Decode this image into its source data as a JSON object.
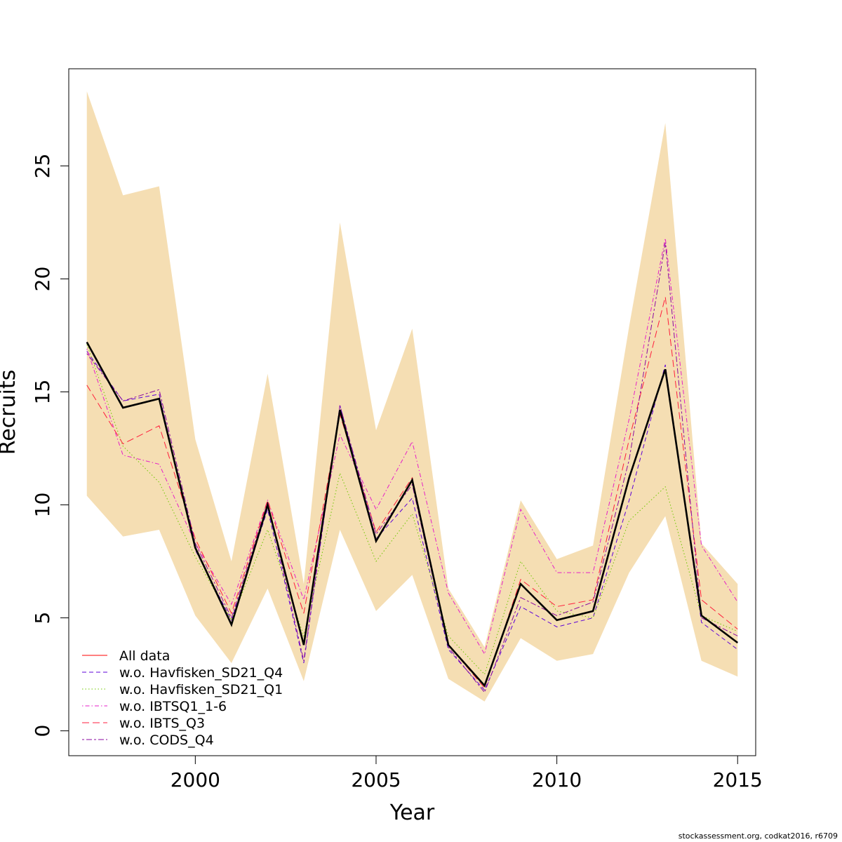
{
  "chart_data": {
    "type": "line",
    "title": "",
    "xlabel": "Year",
    "ylabel": "Recruits",
    "xlim": [
      1996.5,
      2015.5
    ],
    "ylim": [
      -1.1,
      29.3
    ],
    "x_ticks": [
      2000,
      2005,
      2010,
      2015
    ],
    "y_ticks": [
      0,
      5,
      10,
      15,
      20,
      25
    ],
    "grid": false,
    "legend_position": "bottom-left",
    "x": [
      1997,
      1998,
      1999,
      2000,
      2001,
      2002,
      2003,
      2004,
      2005,
      2006,
      2007,
      2008,
      2009,
      2010,
      2011,
      2012,
      2013,
      2014,
      2015
    ],
    "confidence_band": {
      "color": "#f5deb3",
      "lower": [
        10.4,
        8.6,
        8.9,
        5.1,
        3.0,
        6.3,
        2.2,
        8.9,
        5.3,
        6.9,
        2.3,
        1.3,
        4.1,
        3.1,
        3.4,
        7.0,
        9.5,
        3.1,
        2.4
      ],
      "upper": [
        28.3,
        23.7,
        24.1,
        12.9,
        7.5,
        15.8,
        6.5,
        22.5,
        13.3,
        17.8,
        6.3,
        3.7,
        10.2,
        7.6,
        8.2,
        17.9,
        26.9,
        8.3,
        6.5
      ]
    },
    "main_series": {
      "color": "#000000",
      "values": [
        17.2,
        14.3,
        14.7,
        8.1,
        4.7,
        10.0,
        3.8,
        14.2,
        8.4,
        11.1,
        3.8,
        2.0,
        6.5,
        4.9,
        5.3,
        11.2,
        16.0,
        5.1,
        3.9
      ]
    },
    "series": [
      {
        "name": "All data",
        "color": "#ff0000",
        "dash": "solid",
        "values": [
          17.2,
          14.3,
          14.7,
          8.1,
          4.7,
          10.0,
          3.8,
          14.2,
          8.4,
          11.1,
          3.8,
          2.0,
          6.5,
          4.9,
          5.3,
          11.2,
          16.0,
          5.1,
          3.9
        ]
      },
      {
        "name": "w.o. Havfisken_SD21_Q4",
        "color": "#5d00d8",
        "dash": "dashed",
        "values": [
          16.8,
          14.6,
          14.9,
          8.0,
          4.9,
          9.8,
          3.0,
          14.4,
          8.5,
          10.3,
          3.6,
          1.8,
          5.5,
          4.6,
          5.0,
          10.2,
          16.2,
          4.8,
          3.6
        ]
      },
      {
        "name": "w.o. Havfisken_SD21_Q1",
        "color": "#6ec800",
        "dash": "dotted",
        "values": [
          17.1,
          12.6,
          11.0,
          7.7,
          4.9,
          8.9,
          4.2,
          11.4,
          7.5,
          9.6,
          4.2,
          2.5,
          7.5,
          5.3,
          5.0,
          9.3,
          10.8,
          5.1,
          4.4
        ]
      },
      {
        "name": "w.o. IBTSQ1_1-6",
        "color": "#e61ec8",
        "dash": "dotdash",
        "values": [
          16.9,
          12.2,
          11.8,
          8.3,
          5.6,
          10.2,
          5.8,
          13.1,
          9.8,
          12.8,
          6.1,
          3.4,
          9.8,
          7.0,
          7.0,
          13.8,
          21.8,
          8.2,
          5.7
        ]
      },
      {
        "name": "w.o. IBTS_Q3",
        "color": "#ff1e3c",
        "dash": "longdash",
        "values": [
          15.3,
          12.7,
          13.5,
          8.5,
          5.2,
          10.2,
          5.2,
          14.0,
          8.8,
          11.2,
          3.8,
          1.9,
          6.7,
          5.5,
          5.8,
          12.9,
          19.2,
          5.8,
          4.5
        ]
      },
      {
        "name": "w.o. CODS_Q4",
        "color": "#8b0aa0",
        "dash": "twodash",
        "values": [
          16.7,
          14.6,
          15.1,
          8.3,
          5.0,
          10.1,
          3.1,
          14.4,
          8.7,
          10.9,
          3.7,
          1.7,
          5.9,
          5.1,
          5.7,
          12.0,
          21.6,
          5.0,
          4.2
        ]
      }
    ]
  },
  "footer": {
    "credit": "stockassessment.org, codkat2016, r6709"
  }
}
